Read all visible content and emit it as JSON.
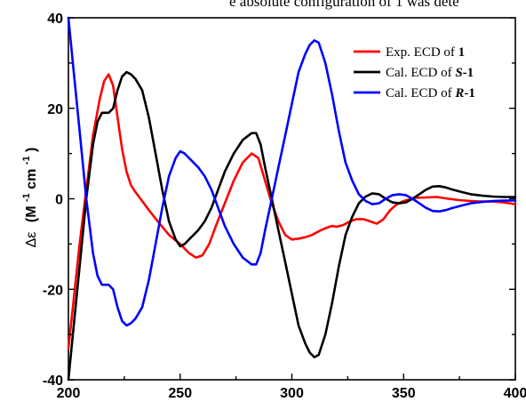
{
  "page": {
    "top_text": "e absolute configuration of 1 was dete"
  },
  "chart_data": {
    "type": "line",
    "title": "",
    "xlabel": "",
    "ylabel": "Δε (M⁻¹cm⁻¹)",
    "ylabel_parts": {
      "symbol": "Δε",
      "unit_open": "(M",
      "unit_exp1": "-1",
      "unit_mid": "cm",
      "unit_exp2": "-1",
      "unit_close": ")"
    },
    "xlim": [
      200,
      400
    ],
    "ylim": [
      -40,
      40
    ],
    "x_ticks": [
      200,
      250,
      300,
      350,
      400
    ],
    "y_ticks": [
      -40,
      -20,
      0,
      20,
      40
    ],
    "x_tick_labels": [
      "200",
      "250",
      "300",
      "350",
      "400"
    ],
    "y_tick_labels": [
      "-40",
      "-20",
      "0",
      "20",
      "40"
    ],
    "grid": false,
    "legend_position": "top-right",
    "series": [
      {
        "name": "Exp. ECD of 1",
        "legend_parts": {
          "prefix": "Exp. ECD of ",
          "bold": "1",
          "bold_italic": "",
          "suffix": ""
        },
        "color": "#ff0000",
        "points": [
          [
            200,
            -33
          ],
          [
            202,
            -24
          ],
          [
            205,
            -10
          ],
          [
            208,
            2
          ],
          [
            211,
            14
          ],
          [
            214,
            22
          ],
          [
            216,
            26
          ],
          [
            218,
            27.5
          ],
          [
            220,
            25
          ],
          [
            222,
            18
          ],
          [
            224,
            11
          ],
          [
            226,
            6
          ],
          [
            228,
            3
          ],
          [
            230,
            1.5
          ],
          [
            233,
            -0.5
          ],
          [
            236,
            -2.5
          ],
          [
            240,
            -5
          ],
          [
            245,
            -8
          ],
          [
            250,
            -10
          ],
          [
            254,
            -12
          ],
          [
            257,
            -13
          ],
          [
            260,
            -12.5
          ],
          [
            263,
            -10
          ],
          [
            266,
            -6
          ],
          [
            270,
            -1
          ],
          [
            274,
            4
          ],
          [
            278,
            8
          ],
          [
            282,
            10
          ],
          [
            285,
            9
          ],
          [
            288,
            4
          ],
          [
            291,
            -1
          ],
          [
            294,
            -5
          ],
          [
            297,
            -8
          ],
          [
            300,
            -9
          ],
          [
            303,
            -8.8
          ],
          [
            306,
            -8.5
          ],
          [
            309,
            -8
          ],
          [
            312,
            -7.2
          ],
          [
            315,
            -6.5
          ],
          [
            318,
            -6
          ],
          [
            320,
            -6.2
          ],
          [
            323,
            -5.8
          ],
          [
            326,
            -5
          ],
          [
            329,
            -4.5
          ],
          [
            332,
            -4.5
          ],
          [
            335,
            -5
          ],
          [
            338,
            -5.5
          ],
          [
            341,
            -4.5
          ],
          [
            344,
            -2.5
          ],
          [
            347,
            -1.2
          ],
          [
            350,
            -0.5
          ],
          [
            355,
            0.2
          ],
          [
            360,
            0.3
          ],
          [
            365,
            0.4
          ],
          [
            370,
            0
          ],
          [
            375,
            -0.3
          ],
          [
            380,
            -0.5
          ],
          [
            385,
            -0.6
          ],
          [
            390,
            -0.6
          ],
          [
            395,
            -0.8
          ],
          [
            400,
            -1.2
          ]
        ]
      },
      {
        "name": "Cal. ECD of S-1",
        "legend_parts": {
          "prefix": "Cal. ECD of ",
          "bold": "",
          "bold_italic": "S",
          "suffix": "-1"
        },
        "color": "#000000",
        "points": [
          [
            200,
            -40
          ],
          [
            202,
            -30
          ],
          [
            205,
            -15
          ],
          [
            208,
            0
          ],
          [
            211,
            12
          ],
          [
            213,
            17
          ],
          [
            215,
            19
          ],
          [
            218,
            19
          ],
          [
            220,
            20
          ],
          [
            222,
            24
          ],
          [
            224,
            27
          ],
          [
            226,
            28
          ],
          [
            228,
            27.5
          ],
          [
            230,
            26.5
          ],
          [
            233,
            24
          ],
          [
            236,
            18
          ],
          [
            239,
            10
          ],
          [
            242,
            2
          ],
          [
            245,
            -5
          ],
          [
            248,
            -9
          ],
          [
            250,
            -10.5
          ],
          [
            252,
            -10
          ],
          [
            255,
            -8.5
          ],
          [
            258,
            -7
          ],
          [
            261,
            -5
          ],
          [
            264,
            -2
          ],
          [
            267,
            2
          ],
          [
            270,
            6
          ],
          [
            274,
            10
          ],
          [
            278,
            13
          ],
          [
            282,
            14.5
          ],
          [
            284,
            14.5
          ],
          [
            286,
            12
          ],
          [
            288,
            7
          ],
          [
            291,
            0
          ],
          [
            294,
            -7
          ],
          [
            297,
            -14
          ],
          [
            300,
            -21
          ],
          [
            303,
            -28
          ],
          [
            306,
            -32
          ],
          [
            308,
            -34
          ],
          [
            310,
            -35
          ],
          [
            312,
            -34.5
          ],
          [
            315,
            -30
          ],
          [
            318,
            -23
          ],
          [
            321,
            -15
          ],
          [
            324,
            -8
          ],
          [
            327,
            -4
          ],
          [
            330,
            -1
          ],
          [
            333,
            0.5
          ],
          [
            336,
            1.2
          ],
          [
            339,
            1
          ],
          [
            342,
            0
          ],
          [
            345,
            -0.8
          ],
          [
            348,
            -1
          ],
          [
            351,
            -0.8
          ],
          [
            354,
            0
          ],
          [
            357,
            1
          ],
          [
            360,
            2
          ],
          [
            363,
            2.7
          ],
          [
            366,
            2.8
          ],
          [
            369,
            2.5
          ],
          [
            372,
            2
          ],
          [
            376,
            1.5
          ],
          [
            380,
            1
          ],
          [
            385,
            0.7
          ],
          [
            390,
            0.5
          ],
          [
            395,
            0.4
          ],
          [
            400,
            0.4
          ]
        ]
      },
      {
        "name": "Cal. ECD of R-1",
        "legend_parts": {
          "prefix": "Cal. ECD of ",
          "bold": "",
          "bold_italic": "R",
          "suffix": "-1"
        },
        "color": "#0000ff",
        "points": [
          [
            200,
            40
          ],
          [
            202,
            30
          ],
          [
            205,
            15
          ],
          [
            208,
            0
          ],
          [
            211,
            -12
          ],
          [
            213,
            -17
          ],
          [
            215,
            -19
          ],
          [
            218,
            -19
          ],
          [
            220,
            -20
          ],
          [
            222,
            -24
          ],
          [
            224,
            -27
          ],
          [
            226,
            -28
          ],
          [
            228,
            -27.5
          ],
          [
            230,
            -26.5
          ],
          [
            233,
            -24
          ],
          [
            236,
            -18
          ],
          [
            239,
            -10
          ],
          [
            242,
            -2
          ],
          [
            245,
            5
          ],
          [
            248,
            9
          ],
          [
            250,
            10.5
          ],
          [
            252,
            10
          ],
          [
            255,
            8.5
          ],
          [
            258,
            7
          ],
          [
            261,
            5
          ],
          [
            264,
            2
          ],
          [
            267,
            -2
          ],
          [
            270,
            -6
          ],
          [
            274,
            -10
          ],
          [
            278,
            -13
          ],
          [
            282,
            -14.5
          ],
          [
            284,
            -14.5
          ],
          [
            286,
            -12
          ],
          [
            288,
            -7
          ],
          [
            291,
            0
          ],
          [
            294,
            7
          ],
          [
            297,
            14
          ],
          [
            300,
            21
          ],
          [
            303,
            28
          ],
          [
            306,
            32
          ],
          [
            308,
            34
          ],
          [
            310,
            35
          ],
          [
            312,
            34.5
          ],
          [
            315,
            30
          ],
          [
            318,
            23
          ],
          [
            321,
            15
          ],
          [
            324,
            8
          ],
          [
            327,
            4
          ],
          [
            330,
            1
          ],
          [
            333,
            -0.5
          ],
          [
            336,
            -1.2
          ],
          [
            339,
            -1
          ],
          [
            342,
            0
          ],
          [
            345,
            0.8
          ],
          [
            348,
            1
          ],
          [
            351,
            0.8
          ],
          [
            354,
            0
          ],
          [
            357,
            -1
          ],
          [
            360,
            -2
          ],
          [
            363,
            -2.7
          ],
          [
            366,
            -2.8
          ],
          [
            369,
            -2.5
          ],
          [
            372,
            -2
          ],
          [
            376,
            -1.5
          ],
          [
            380,
            -1
          ],
          [
            385,
            -0.7
          ],
          [
            390,
            -0.5
          ],
          [
            395,
            -0.4
          ],
          [
            400,
            -0.4
          ]
        ]
      }
    ]
  }
}
